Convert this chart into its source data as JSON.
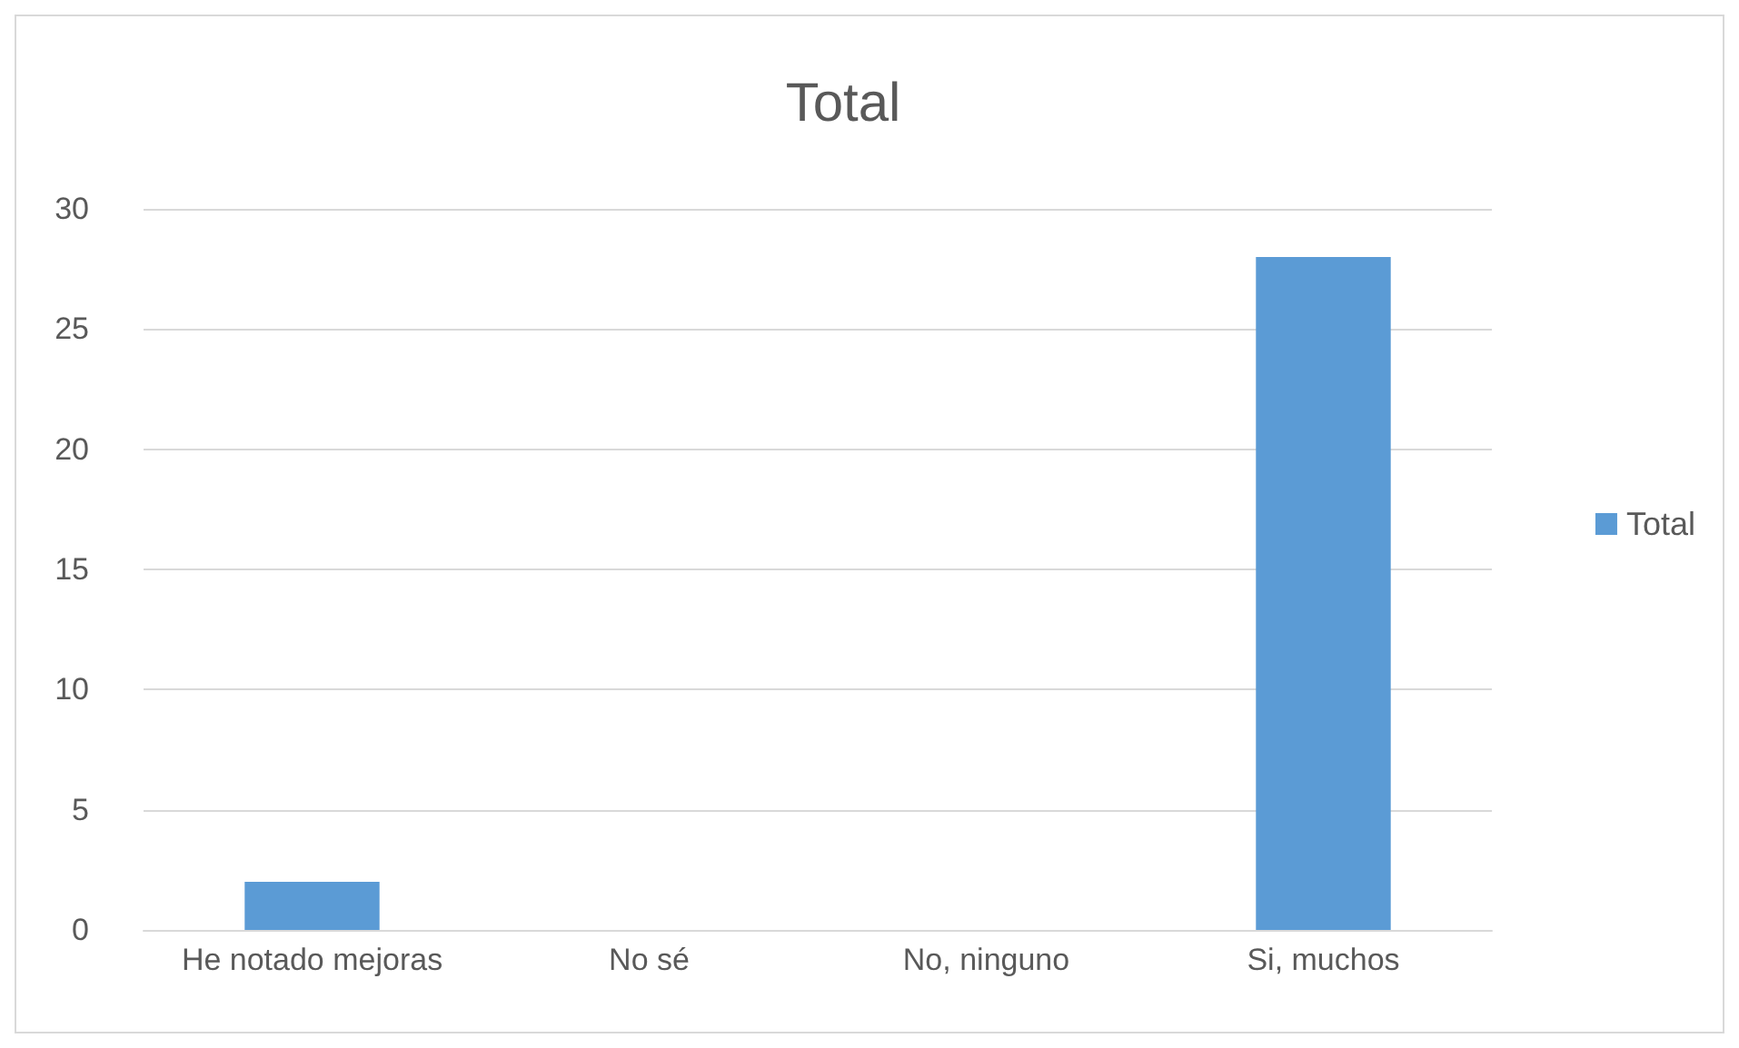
{
  "chart_data": {
    "type": "bar",
    "title": "Total",
    "categories": [
      "He notado mejoras",
      "No sé",
      "No, ninguno",
      "Si, muchos"
    ],
    "series": [
      {
        "name": "Total",
        "color": "#5b9bd5",
        "values": [
          2,
          0,
          0,
          28
        ]
      }
    ],
    "ylim": [
      0,
      30
    ],
    "yticks": [
      0,
      5,
      10,
      15,
      20,
      25,
      30
    ],
    "grid": "y",
    "legend": "right"
  }
}
